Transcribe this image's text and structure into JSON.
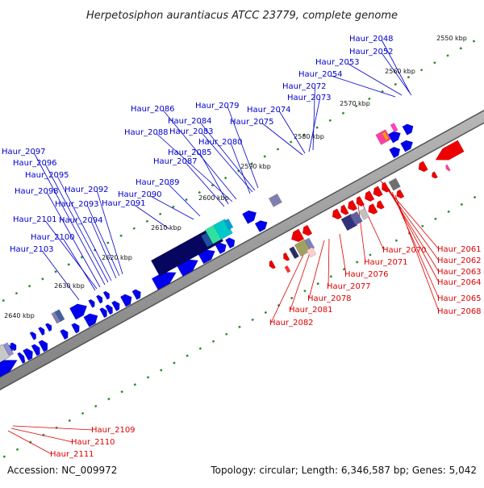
{
  "title": "Herpetosiphon aurantiacus ATCC 23779, complete genome",
  "footer": {
    "accession": "Accession: NC_009972",
    "topology": "Topology: circular; Length: 6,346,587 bp; Genes: 5,042"
  },
  "colors": {
    "forward_label": "#0000cc",
    "reverse_label": "#dd0000",
    "backbone": "#b0b0b0",
    "tick": "#2a8a2a"
  },
  "ticks": [
    "2550 kbp",
    "2560 kbp",
    "2570 kbp",
    "2580 kbp",
    "2590 kbp",
    "2600 kbp",
    "2610 kbp",
    "2620 kbp",
    "2630 kbp",
    "2640 kbp"
  ],
  "forward_labels": [
    "Haur_2048",
    "Haur_2052",
    "Haur_2053",
    "Haur_2054",
    "Haur_2072",
    "Haur_2073",
    "Haur_2074",
    "Haur_2075",
    "Haur_2079",
    "Haur_2084",
    "Haur_2083",
    "Haur_2080",
    "Haur_2086",
    "Haur_2088",
    "Haur_2085",
    "Haur_2087",
    "Haur_2089",
    "Haur_2090",
    "Haur_2091",
    "Haur_2092",
    "Haur_2093",
    "Haur_2094",
    "Haur_2095",
    "Haur_2096",
    "Haur_2097",
    "Haur_2098",
    "Haur_2101",
    "Haur_2100",
    "Haur_2103"
  ],
  "reverse_labels": [
    "Haur_2061",
    "Haur_2062",
    "Haur_2063",
    "Haur_2064",
    "Haur_2065",
    "Haur_2068",
    "Haur_2070",
    "Haur_2071",
    "Haur_2076",
    "Haur_2077",
    "Haur_2078",
    "Haur_2081",
    "Haur_2082",
    "Haur_2109",
    "Haur_2110",
    "Haur_2111"
  ]
}
